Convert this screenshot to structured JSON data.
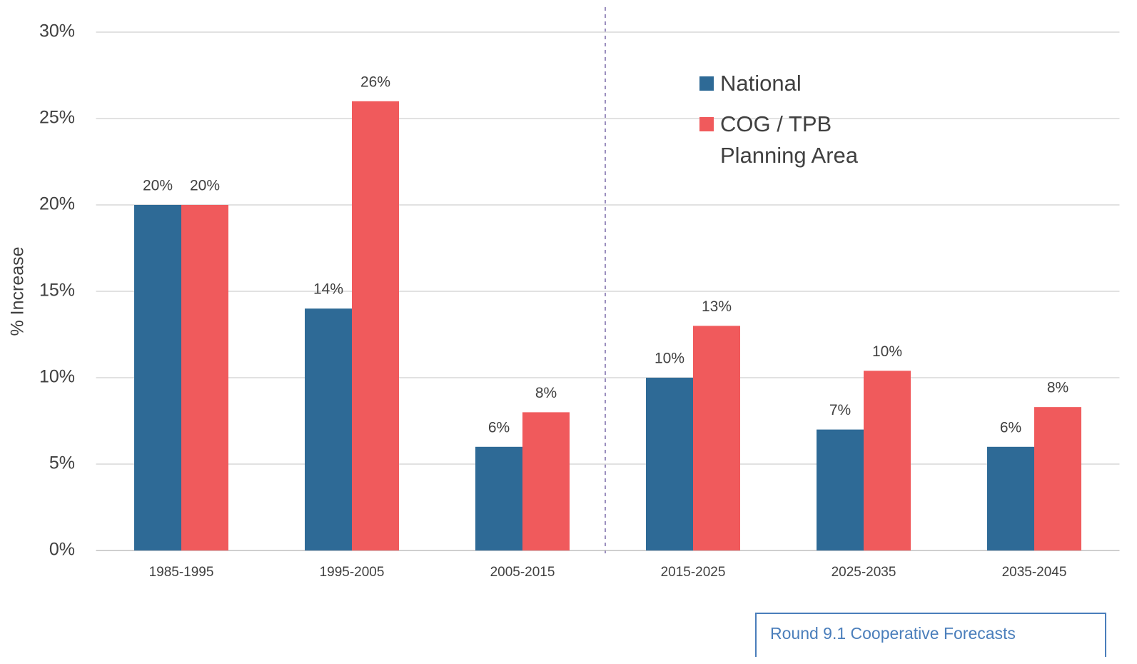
{
  "chart_data": {
    "type": "bar",
    "y_label": "% Increase",
    "categories": [
      "1985-1995",
      "1995-2005",
      "2005-2015",
      "2015-2025",
      "2025-2035",
      "2035-2045"
    ],
    "series": [
      {
        "name": "National",
        "color": "#2e6a96",
        "values": [
          20,
          14,
          6,
          10,
          7,
          6
        ],
        "value_labels": [
          "20%",
          "14%",
          "6%",
          "10%",
          "7%",
          "6%"
        ]
      },
      {
        "name": "COG / TPB Planning Area",
        "color": "#f05a5c",
        "values": [
          20,
          26,
          8,
          13,
          10.4,
          8.3
        ],
        "value_labels": [
          "20%",
          "26%",
          "8%",
          "13%",
          "10%",
          "8%"
        ]
      }
    ],
    "ylim": [
      0,
      30
    ],
    "yticks": [
      {
        "value": 0,
        "label": "0%"
      },
      {
        "value": 5,
        "label": "5%"
      },
      {
        "value": 10,
        "label": "10%"
      },
      {
        "value": 15,
        "label": "15%"
      },
      {
        "value": 20,
        "label": "20%"
      },
      {
        "value": 25,
        "label": "25%"
      },
      {
        "value": 30,
        "label": "30%"
      }
    ],
    "grid": true,
    "annotation": "Round 9.1 Cooperative Forecasts"
  }
}
